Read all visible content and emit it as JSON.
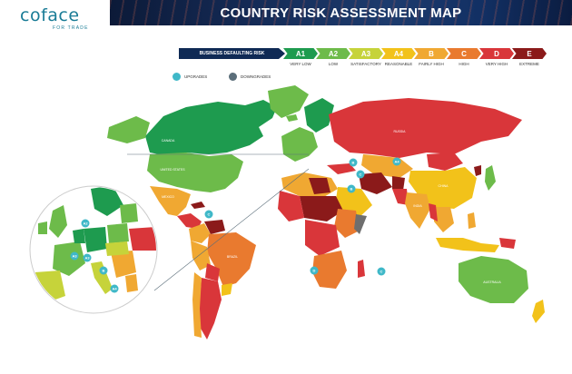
{
  "brand": {
    "name": "coface",
    "tagline": "FOR TRADE",
    "color": "#1a7c96"
  },
  "title": "COUNTRY RISK ASSESSMENT MAP",
  "legend": {
    "label": "BUSINESS DEFAULTING RISK",
    "items": [
      {
        "grade": "A1",
        "desc": "VERY LOW",
        "color": "#1e9b4f"
      },
      {
        "grade": "A2",
        "desc": "LOW",
        "color": "#6dbb4a"
      },
      {
        "grade": "A3",
        "desc": "SATISFACTORY",
        "color": "#c6d33a"
      },
      {
        "grade": "A4",
        "desc": "REASONABLE",
        "color": "#f2c21a"
      },
      {
        "grade": "B",
        "desc": "FAIRLY HIGH",
        "color": "#f0a832"
      },
      {
        "grade": "C",
        "desc": "HIGH",
        "color": "#e97a2f"
      },
      {
        "grade": "D",
        "desc": "VERY HIGH",
        "color": "#d9363a"
      },
      {
        "grade": "E",
        "desc": "EXTREME",
        "color": "#8b1a1a"
      }
    ]
  },
  "keys": [
    {
      "label": "UPGRADES",
      "color": "#3fb8c8",
      "icon": "upgrade-dot-icon"
    },
    {
      "label": "DOWNGRADES",
      "color": "#5b6e7a",
      "icon": "downgrade-dot-icon"
    }
  ],
  "map_labels": {
    "canada": "CANADA",
    "united_states": "UNITED STATES",
    "mexico": "MEXICO",
    "brazil": "BRAZIL",
    "russia": "RUSSIA",
    "china": "CHINA",
    "india": "INDIA",
    "australia": "AUSTRALIA"
  },
  "markers": [
    {
      "code": "C",
      "kind": "upgrade"
    },
    {
      "code": "B",
      "kind": "upgrade"
    },
    {
      "code": "A4",
      "kind": "upgrade"
    },
    {
      "code": "C",
      "kind": "upgrade"
    },
    {
      "code": "B",
      "kind": "upgrade"
    },
    {
      "code": "D",
      "kind": "upgrade"
    },
    {
      "code": "C",
      "kind": "upgrade"
    },
    {
      "code": "A2",
      "kind": "upgrade"
    },
    {
      "code": "A3",
      "kind": "upgrade"
    },
    {
      "code": "A3",
      "kind": "upgrade"
    },
    {
      "code": "B",
      "kind": "upgrade"
    },
    {
      "code": "A4",
      "kind": "upgrade"
    }
  ]
}
